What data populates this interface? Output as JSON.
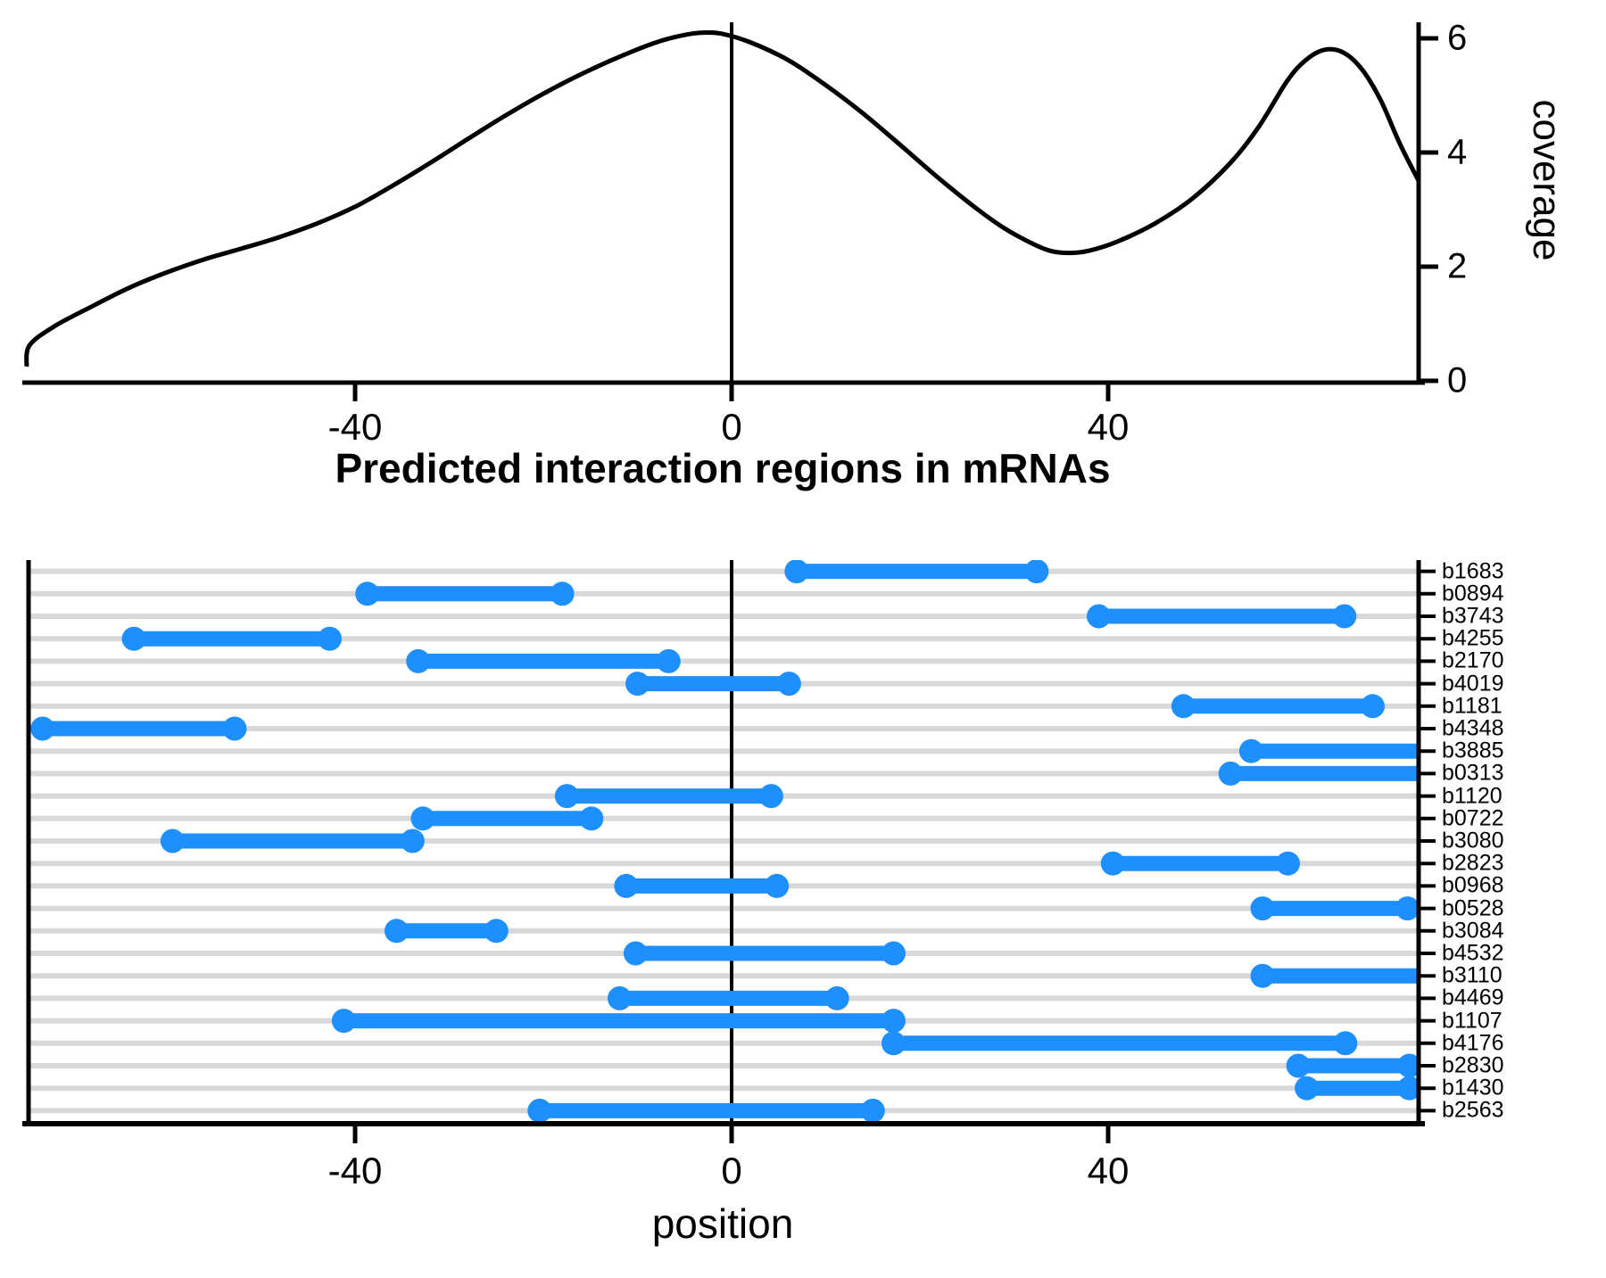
{
  "figure": {
    "title": "Predicted interaction regions in mRNAs",
    "xlabel": "position",
    "ylabel": "coverage",
    "colors": {
      "segment_blue": "#1E8FFF",
      "gridline_gray": "#D8D8D8",
      "axis_black": "#000000",
      "background": "#FFFFFF"
    }
  },
  "chart_data": [
    {
      "type": "line",
      "name": "coverage-density",
      "ylabel": "coverage",
      "xlabel": "",
      "legend": "none",
      "grid": "off",
      "yticks": [
        0,
        2,
        4,
        6
      ],
      "xticks": [
        -40,
        0,
        40
      ],
      "xtick_labels": [
        "-40",
        "0",
        "40"
      ],
      "ytick_labels": [
        "0",
        "2",
        "4",
        "6"
      ],
      "xlim": [
        -74.9,
        73.0
      ],
      "ylim": [
        0,
        6.28
      ],
      "zero_vline": 0,
      "points": [
        [
          -74.9,
          0.25
        ],
        [
          -74.6,
          0.62
        ],
        [
          -72,
          0.95
        ],
        [
          -68,
          1.3
        ],
        [
          -64,
          1.63
        ],
        [
          -60,
          1.9
        ],
        [
          -56,
          2.13
        ],
        [
          -52,
          2.32
        ],
        [
          -48,
          2.52
        ],
        [
          -44,
          2.76
        ],
        [
          -40,
          3.05
        ],
        [
          -36,
          3.42
        ],
        [
          -32,
          3.82
        ],
        [
          -28,
          4.24
        ],
        [
          -24,
          4.65
        ],
        [
          -20,
          5.03
        ],
        [
          -16,
          5.37
        ],
        [
          -12,
          5.67
        ],
        [
          -8,
          5.93
        ],
        [
          -5,
          6.06
        ],
        [
          -3,
          6.1
        ],
        [
          -1,
          6.08
        ],
        [
          2,
          5.93
        ],
        [
          6,
          5.62
        ],
        [
          10,
          5.18
        ],
        [
          14,
          4.68
        ],
        [
          18,
          4.12
        ],
        [
          22,
          3.55
        ],
        [
          26,
          3.02
        ],
        [
          29,
          2.67
        ],
        [
          32,
          2.4
        ],
        [
          34,
          2.27
        ],
        [
          36,
          2.24
        ],
        [
          38,
          2.28
        ],
        [
          41,
          2.44
        ],
        [
          45,
          2.76
        ],
        [
          49,
          3.2
        ],
        [
          53,
          3.82
        ],
        [
          56,
          4.45
        ],
        [
          59,
          5.25
        ],
        [
          61,
          5.62
        ],
        [
          63,
          5.8
        ],
        [
          65,
          5.75
        ],
        [
          67,
          5.45
        ],
        [
          69,
          4.9
        ],
        [
          71,
          4.15
        ],
        [
          73,
          3.5
        ]
      ]
    },
    {
      "type": "dumbbell",
      "name": "interaction-regions",
      "title": "Predicted interaction regions in mRNAs",
      "xlabel": "position",
      "xticks": [
        -40,
        0,
        40
      ],
      "xtick_labels": [
        "-40",
        "0",
        "40"
      ],
      "xlim": [
        -74.9,
        73.0
      ],
      "zero_vline": 0,
      "grid": "horizontal",
      "rows": [
        {
          "label": "b1683",
          "start": 6.9,
          "end": 32.4
        },
        {
          "label": "b0894",
          "start": -38.7,
          "end": -18.0
        },
        {
          "label": "b3743",
          "start": 39.0,
          "end": 65.1
        },
        {
          "label": "b4255",
          "start": -63.5,
          "end": -42.7
        },
        {
          "label": "b2170",
          "start": -33.3,
          "end": -6.7
        },
        {
          "label": "b4019",
          "start": -10.0,
          "end": 6.1
        },
        {
          "label": "b1181",
          "start": 48.0,
          "end": 68.1
        },
        {
          "label": "b4348",
          "start": -73.2,
          "end": -52.8
        },
        {
          "label": "b3885",
          "start": 55.2,
          "end": 76.0
        },
        {
          "label": "b0313",
          "start": 53.0,
          "end": 76.0
        },
        {
          "label": "b1120",
          "start": -17.5,
          "end": 4.2
        },
        {
          "label": "b0722",
          "start": -32.8,
          "end": -14.9
        },
        {
          "label": "b3080",
          "start": -59.4,
          "end": -33.9
        },
        {
          "label": "b2823",
          "start": 40.5,
          "end": 59.1
        },
        {
          "label": "b0968",
          "start": -11.2,
          "end": 4.8
        },
        {
          "label": "b0528",
          "start": 56.4,
          "end": 71.8
        },
        {
          "label": "b3084",
          "start": -35.6,
          "end": -25.0
        },
        {
          "label": "b4532",
          "start": -10.2,
          "end": 17.2
        },
        {
          "label": "b3110",
          "start": 56.4,
          "end": 76.0
        },
        {
          "label": "b4469",
          "start": -11.9,
          "end": 11.2
        },
        {
          "label": "b1107",
          "start": -41.2,
          "end": 17.2
        },
        {
          "label": "b4176",
          "start": 17.2,
          "end": 65.2
        },
        {
          "label": "b2830",
          "start": 60.2,
          "end": 72.0
        },
        {
          "label": "b1430",
          "start": 61.1,
          "end": 72.0
        },
        {
          "label": "b2563",
          "start": -20.4,
          "end": 15.0
        }
      ]
    }
  ]
}
